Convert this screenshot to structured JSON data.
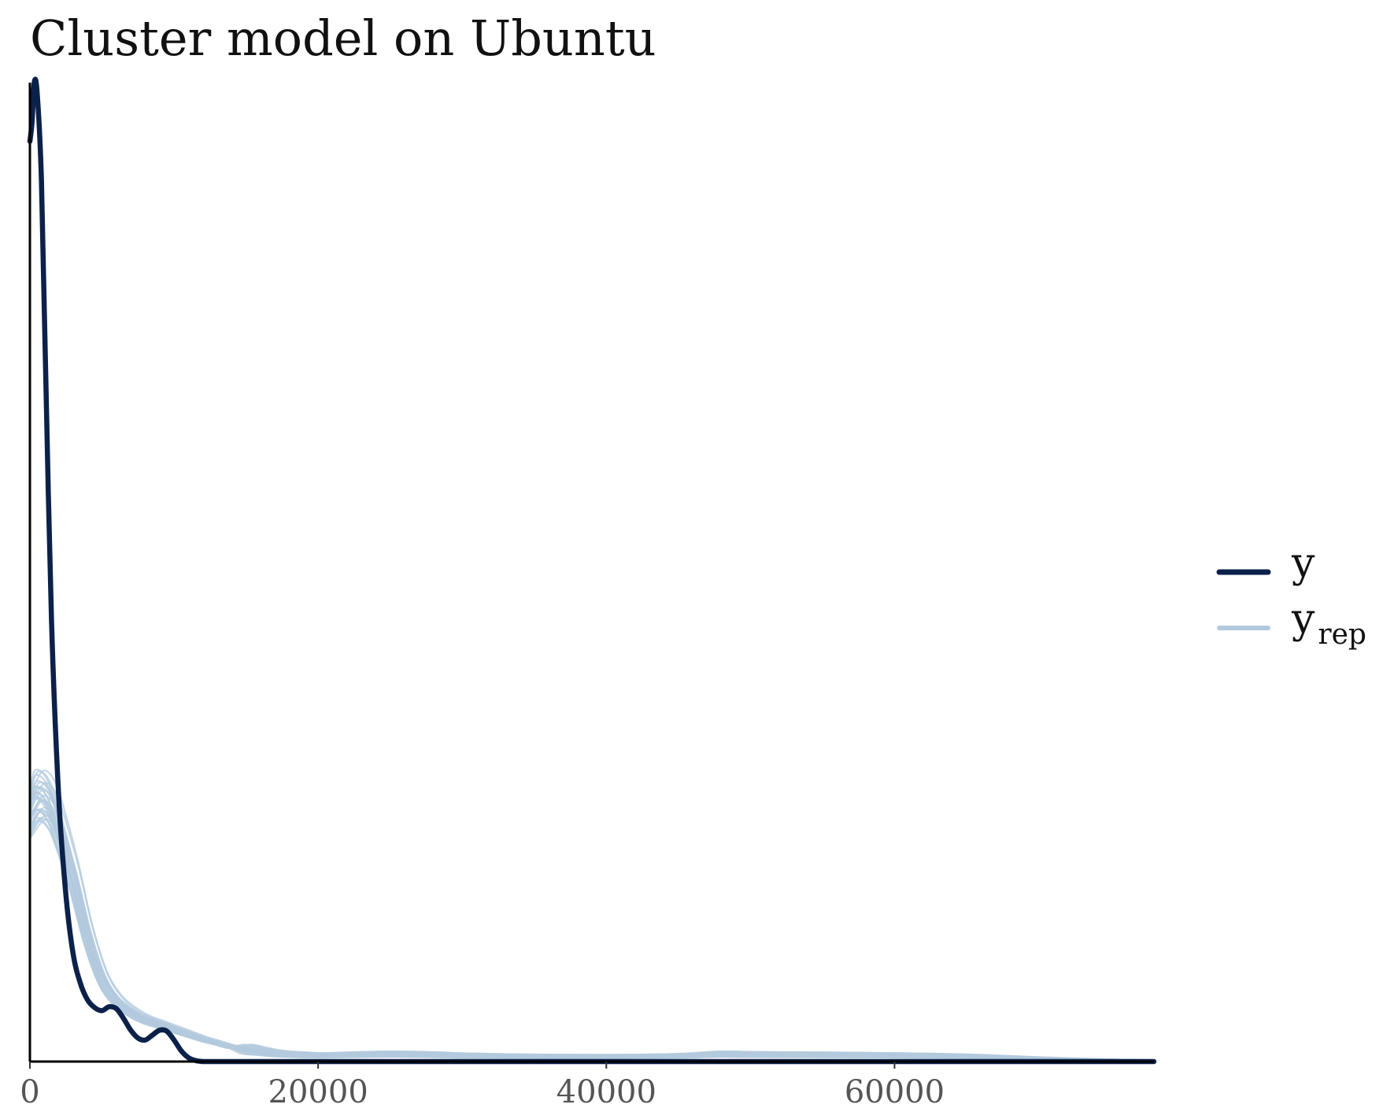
{
  "chart_data": {
    "type": "line",
    "title": "Cluster model on Ubuntu",
    "xlabel": "",
    "ylabel": "",
    "xlim": [
      0,
      78000
    ],
    "ylim": [
      0,
      1.0
    ],
    "x_ticks": [
      0,
      20000,
      40000,
      60000
    ],
    "x_tick_labels": [
      "0",
      "20000",
      "40000",
      "60000"
    ],
    "y_axis_ticks_shown": false,
    "grid": false,
    "legend": {
      "placement": "right",
      "entries": [
        {
          "label": "y",
          "color": "#0b2149"
        },
        {
          "label": "y",
          "subscript": "rep",
          "color": "#b3cade"
        }
      ]
    },
    "series": [
      {
        "name": "y",
        "color": "#0b2149",
        "x": [
          0,
          150,
          300,
          500,
          800,
          1100,
          1500,
          2000,
          2500,
          3000,
          3500,
          4000,
          4500,
          5000,
          5500,
          6000,
          6500,
          7000,
          7500,
          8000,
          8500,
          9000,
          9500,
          10000,
          10500,
          11000,
          11500,
          12000,
          12500,
          13000,
          13500,
          14000,
          15000,
          20000,
          30000,
          40000,
          50000,
          60000,
          70000,
          78000
        ],
        "y": [
          0.94,
          0.96,
          1.0,
          0.99,
          0.9,
          0.7,
          0.45,
          0.27,
          0.17,
          0.11,
          0.08,
          0.063,
          0.055,
          0.052,
          0.056,
          0.054,
          0.044,
          0.032,
          0.024,
          0.022,
          0.027,
          0.032,
          0.031,
          0.022,
          0.011,
          0.004,
          0.001,
          0,
          0,
          0,
          0,
          0,
          0,
          0,
          0,
          0,
          0,
          0,
          0,
          0
        ]
      },
      {
        "name": "y_rep",
        "color": "#b3cade",
        "x": [
          0,
          500,
          1000,
          1500,
          2000,
          3000,
          4000,
          5000,
          6000,
          7000,
          8000,
          9000,
          10000,
          11000,
          12000,
          13000,
          14000,
          15000,
          16000,
          17000,
          18000,
          20000,
          22000,
          25000,
          28000,
          30000,
          35000,
          40000,
          45000,
          48000,
          50000,
          55000,
          60000,
          65000,
          70000,
          75000,
          78000
        ],
        "y": [
          0.25,
          0.27,
          0.27,
          0.26,
          0.24,
          0.19,
          0.13,
          0.086,
          0.063,
          0.051,
          0.043,
          0.038,
          0.033,
          0.028,
          0.023,
          0.019,
          0.015,
          0.012,
          0.01,
          0.008,
          0.007,
          0.006,
          0.0065,
          0.0072,
          0.0066,
          0.0058,
          0.005,
          0.0048,
          0.0055,
          0.0072,
          0.0068,
          0.0065,
          0.006,
          0.005,
          0.003,
          0.0015,
          0.001
        ]
      }
    ],
    "yrep_draw_count": 30
  }
}
